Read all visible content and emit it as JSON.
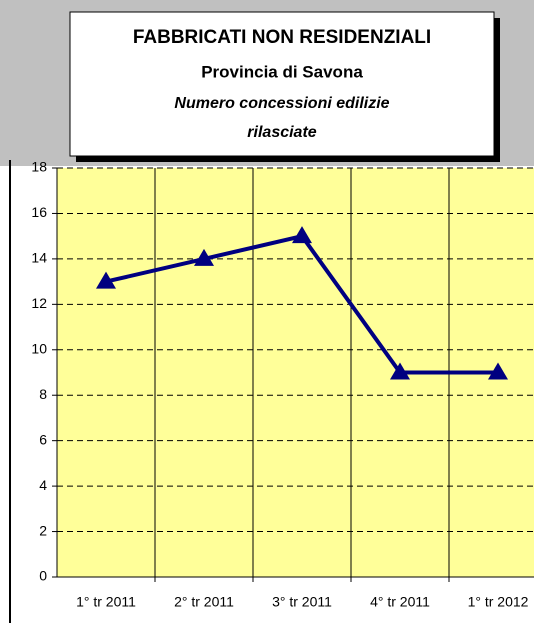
{
  "chart_data": {
    "type": "line",
    "title": "FABBRICATI NON RESIDENZIALI",
    "subtitle": "Provincia di Savona",
    "description_lines": [
      "Numero concessioni edilizie",
      "rilasciate"
    ],
    "categories": [
      "1° tr 2011",
      "2° tr 2011",
      "3° tr 2011",
      "4° tr 2011",
      "1° tr 2012"
    ],
    "values": [
      13,
      14,
      15,
      9,
      9
    ],
    "color": "#000080",
    "plot_color": "#ffff99",
    "ylim": [
      0,
      18
    ],
    "yticks": [
      0,
      2,
      4,
      6,
      8,
      10,
      12,
      14,
      16,
      18
    ],
    "grid": true
  }
}
